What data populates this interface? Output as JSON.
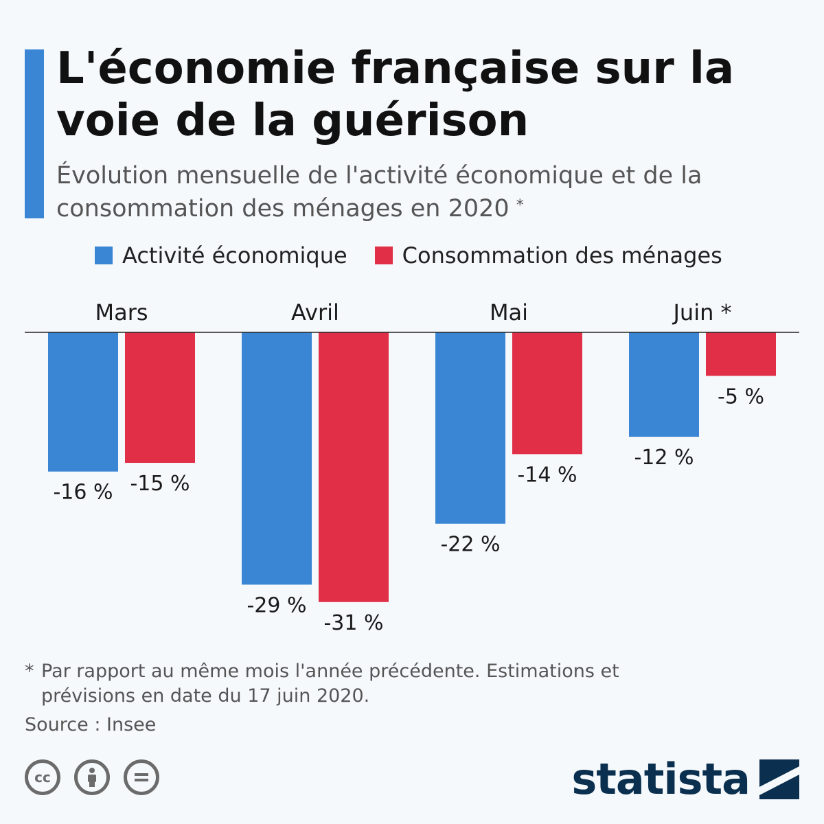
{
  "header": {
    "title": "L'économie française sur la voie de la guérison",
    "subtitle": "Évolution mensuelle de l'activité économique et de la consommation des ménages en 2020",
    "subtitle_mark": "*"
  },
  "legend": {
    "items": [
      {
        "label": "Activité économique",
        "color": "#3a86d4"
      },
      {
        "label": "Consommation des ménages",
        "color": "#e02f46"
      }
    ]
  },
  "chart_data": {
    "type": "bar",
    "categories": [
      "Mars",
      "Avril",
      "Mai",
      "Juin *"
    ],
    "series": [
      {
        "name": "Activité économique",
        "color": "#3a86d4",
        "values": [
          -16,
          -29,
          -22,
          -12
        ]
      },
      {
        "name": "Consommation des ménages",
        "color": "#e02f46",
        "values": [
          -15,
          -31,
          -14,
          -5
        ]
      }
    ],
    "value_suffix": " %",
    "ylim": [
      -31,
      0
    ],
    "grid": false,
    "legend_position": "top"
  },
  "footer": {
    "footnote_mark": "*",
    "footnote": "Par rapport au même mois l'année précédente. Estimations et prévisions en date du 17 juin 2020.",
    "source": "Source : Insee",
    "license_icons": [
      "cc-icon",
      "by-icon",
      "nd-icon"
    ],
    "brand": "statista"
  }
}
